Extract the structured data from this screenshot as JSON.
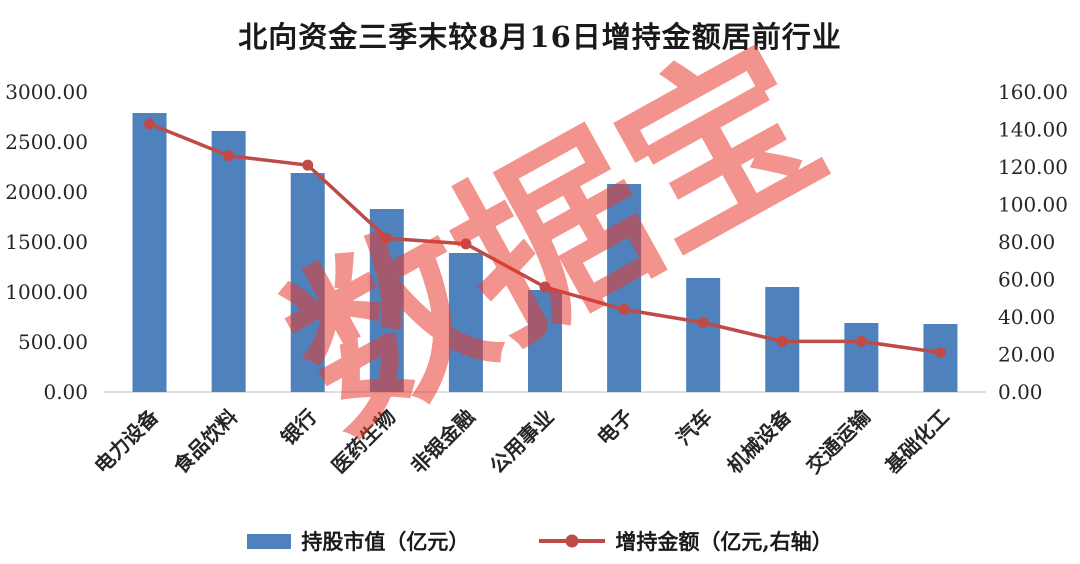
{
  "title": "北向资金三季末较8月16日增持金额居前行业",
  "watermark": {
    "text": "数据宝",
    "color": "#EA3A30"
  },
  "legend": {
    "bar_label": "持股市值（亿元）",
    "line_label": "增持金额（亿元,右轴）"
  },
  "chart_data": {
    "type": "bar",
    "title": "北向资金三季末较8月16日增持金额居前行业",
    "categories": [
      "电力设备",
      "食品饮料",
      "银行",
      "医药生物",
      "非银金融",
      "公用事业",
      "电子",
      "汽车",
      "机械设备",
      "交通运输",
      "基础化工"
    ],
    "series": [
      {
        "name": "持股市值（亿元）",
        "type": "bar",
        "axis": "left",
        "color": "#4F81BD",
        "values": [
          2790,
          2610,
          2190,
          1830,
          1390,
          1020,
          2080,
          1140,
          1050,
          690,
          680
        ]
      },
      {
        "name": "增持金额（亿元,右轴）",
        "type": "line",
        "axis": "right",
        "color": "#BE4B48",
        "values": [
          143,
          126,
          121,
          82,
          79,
          56,
          44,
          37,
          27,
          27,
          21
        ]
      }
    ],
    "left_axis": {
      "min": 0,
      "max": 3000,
      "step": 500,
      "tick_labels": [
        "0.00",
        "500.00",
        "1000.00",
        "1500.00",
        "2000.00",
        "2500.00",
        "3000.00"
      ]
    },
    "right_axis": {
      "min": 0,
      "max": 160,
      "step": 20,
      "tick_labels": [
        "0.00",
        "20.00",
        "40.00",
        "60.00",
        "80.00",
        "100.00",
        "120.00",
        "140.00",
        "160.00"
      ]
    },
    "legend_position": "bottom",
    "grid": false
  }
}
